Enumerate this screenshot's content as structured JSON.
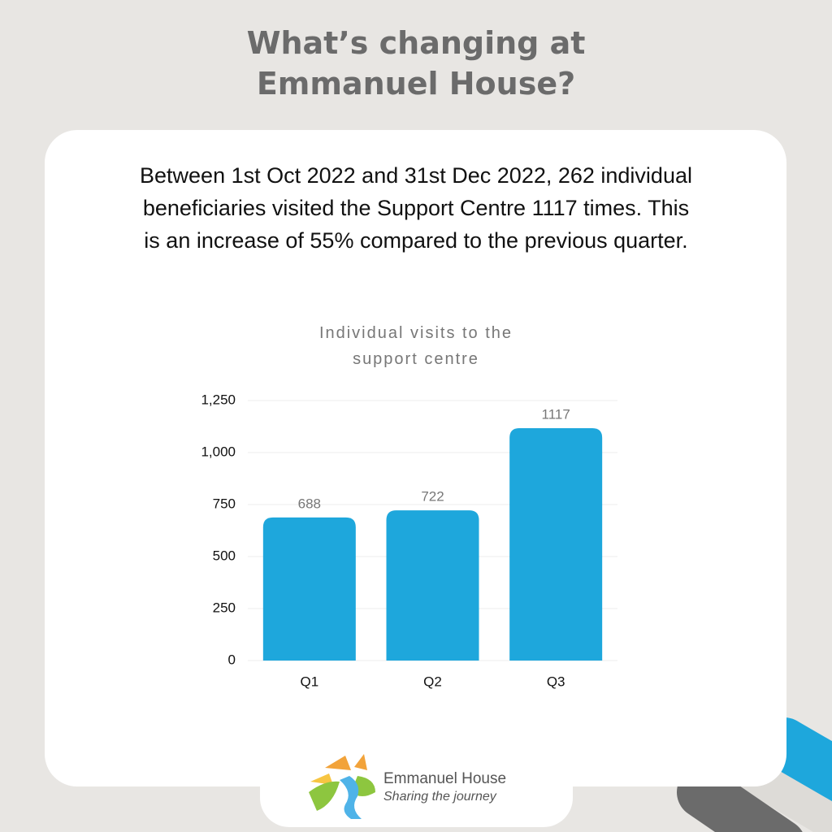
{
  "header": {
    "title": "What’s changing at Emmanuel House?"
  },
  "body": {
    "text": "Between 1st Oct 2022 and 31st Dec 2022, 262 individual beneficiaries visited the Support Centre 1117 times. This is an increase of 55% compared to the previous quarter."
  },
  "chart_data": {
    "type": "bar",
    "title": "Individual visits to the support centre",
    "categories": [
      "Q1",
      "Q2",
      "Q3"
    ],
    "values": [
      688,
      722,
      1117
    ],
    "color": "#1ea7dc",
    "ylim": [
      0,
      1250
    ],
    "yticks": [
      0,
      250,
      500,
      750,
      {
        "value": 1000,
        "label": "1,000"
      },
      {
        "value": 1250,
        "label": "1,250"
      }
    ],
    "grid": true
  },
  "logo": {
    "name": "Emmanuel House",
    "tagline": "Sharing the journey"
  }
}
